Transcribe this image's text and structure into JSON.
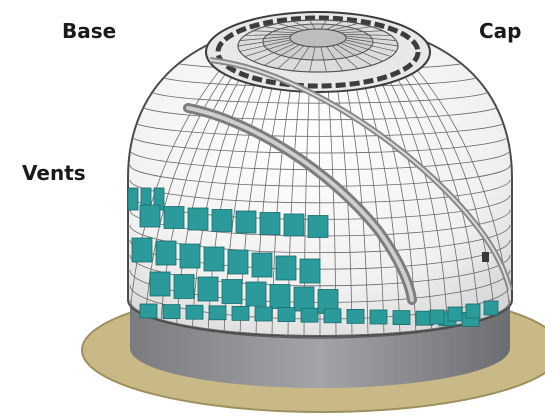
{
  "labels": {
    "base": "Base",
    "cap": "Cap",
    "vents": "Vents"
  },
  "colors": {
    "platform": "#c9b987",
    "platform_edge": "#9e8f5e",
    "base_ring": "#8a8b8e",
    "base_ring_dark": "#6d6e71",
    "dome_skin": "#f3f3f3",
    "grid_line": "#6a6a6a",
    "vent": "#2a9a9a",
    "vent_edge": "#1c6b6b",
    "cap_ring": "#4a4a4a",
    "shutter_rail": "#9a9a9a"
  },
  "icons": {
    "dome": "telescope-dome-illustration"
  }
}
